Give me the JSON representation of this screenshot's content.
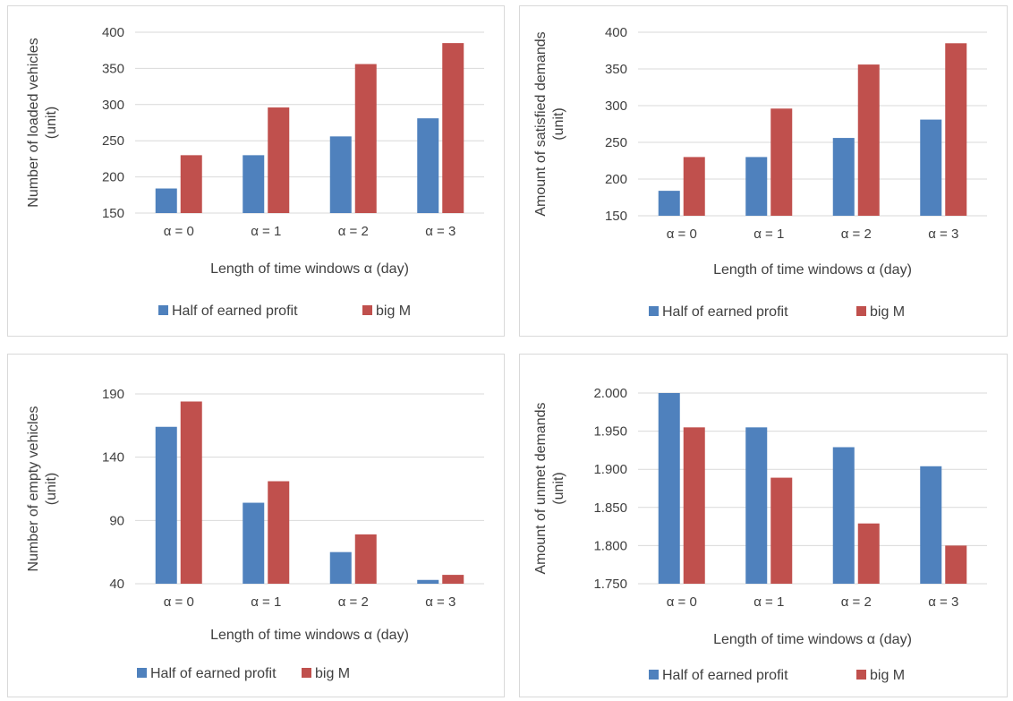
{
  "colors": {
    "series_a": "#4f81bd",
    "series_b": "#c0504d",
    "grid": "#d9d9d9",
    "text": "#404040"
  },
  "chart_data": [
    {
      "type": "bar",
      "categories": [
        "α = 0",
        "α = 1",
        "α = 2",
        "α = 3"
      ],
      "series": [
        {
          "name": "Half of earned profit",
          "values": [
            184,
            230,
            256,
            281
          ]
        },
        {
          "name": "big M",
          "values": [
            230,
            296,
            356,
            385
          ]
        }
      ],
      "title": "",
      "xlabel": "Length of time windows α  (day)",
      "ylabel": [
        "Number of loaded vehicles",
        "(unit)"
      ],
      "ylim": [
        150,
        400
      ],
      "yticks": [
        "150",
        "200",
        "250",
        "300",
        "350",
        "400"
      ],
      "grid": true,
      "legend": "bottom"
    },
    {
      "type": "bar",
      "categories": [
        "α = 0",
        "α = 1",
        "α = 2",
        "α = 3"
      ],
      "series": [
        {
          "name": "Half of earned profit",
          "values": [
            184,
            230,
            256,
            281
          ]
        },
        {
          "name": "big M",
          "values": [
            230,
            296,
            356,
            385
          ]
        }
      ],
      "title": "",
      "xlabel": "Length of time windows α  (day)",
      "ylabel": [
        "Amount of satisfied demands",
        "(unit)"
      ],
      "ylim": [
        150,
        400
      ],
      "yticks": [
        "150",
        "200",
        "250",
        "300",
        "350",
        "400"
      ],
      "grid": true,
      "legend": "bottom"
    },
    {
      "type": "bar",
      "categories": [
        "α = 0",
        "α = 1",
        "α = 2",
        "α = 3"
      ],
      "series": [
        {
          "name": "Half of earned profit",
          "values": [
            164,
            104,
            65,
            43
          ]
        },
        {
          "name": "big M",
          "values": [
            184,
            121,
            79,
            47
          ]
        }
      ],
      "title": "",
      "xlabel": "Length of time windows α  (day)",
      "ylabel": [
        "Number of empty vehicles",
        "(unit)"
      ],
      "ylim": [
        40,
        190
      ],
      "yticks": [
        "40",
        "90",
        "140",
        "190"
      ],
      "grid": true,
      "legend": "bottom"
    },
    {
      "type": "bar",
      "categories": [
        "α = 0",
        "α = 1",
        "α = 2",
        "α = 3"
      ],
      "series": [
        {
          "name": "Half of earned profit",
          "values": [
            2.0,
            1.955,
            1.929,
            1.904
          ]
        },
        {
          "name": "big M",
          "values": [
            1.955,
            1.889,
            1.829,
            1.8
          ]
        }
      ],
      "title": "",
      "xlabel": "Length of time windows α  (day)",
      "ylabel": [
        "Amount of unmet demands",
        "(unit)"
      ],
      "ylim": [
        1.75,
        2.0
      ],
      "yticks": [
        "1.750",
        "1.800",
        "1.850",
        "1.900",
        "1.950",
        "2.000"
      ],
      "grid": true,
      "legend": "bottom"
    }
  ]
}
